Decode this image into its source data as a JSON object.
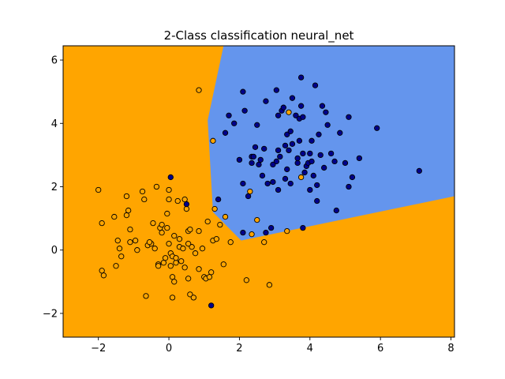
{
  "chart_data": {
    "type": "scatter",
    "title": "2-Class classification neural_net",
    "xlabel": "",
    "ylabel": "",
    "xlim": [
      -3.0,
      8.1
    ],
    "ylim": [
      -2.75,
      6.45
    ],
    "x_ticks": [
      -2,
      0,
      2,
      4,
      6,
      8
    ],
    "y_ticks": [
      -2,
      0,
      2,
      4,
      6
    ],
    "x_tick_labels": [
      "−2",
      "0",
      "2",
      "4",
      "6",
      "8"
    ],
    "y_tick_labels": [
      "−2",
      "0",
      "2",
      "4",
      "6"
    ],
    "grid": false,
    "legend": "none",
    "colors": {
      "region_class_0": "#ffa500",
      "region_class_1": "#6495ed",
      "class_0": "#ffa500",
      "class_1": "#00008b",
      "edge": "#000000"
    },
    "decision_regions": [
      {
        "class": 1,
        "polygon": [
          [
            1.55,
            6.45
          ],
          [
            8.1,
            6.45
          ],
          [
            8.1,
            1.7
          ],
          [
            2.05,
            0.3
          ],
          [
            1.25,
            1.2
          ],
          [
            1.1,
            4.1
          ]
        ]
      }
    ],
    "series": [
      {
        "class": 0,
        "points": [
          [
            -2.0,
            1.9
          ],
          [
            -1.9,
            0.85
          ],
          [
            -1.9,
            -0.65
          ],
          [
            -1.85,
            -0.8
          ],
          [
            -1.55,
            1.05
          ],
          [
            -1.45,
            0.3
          ],
          [
            -1.4,
            0.05
          ],
          [
            -1.35,
            -0.2
          ],
          [
            -1.5,
            -0.5
          ],
          [
            -1.2,
            1.7
          ],
          [
            -1.15,
            1.25
          ],
          [
            -1.2,
            1.1
          ],
          [
            -1.1,
            0.65
          ],
          [
            -1.1,
            0.25
          ],
          [
            -0.95,
            0.3
          ],
          [
            -0.9,
            0.0
          ],
          [
            -0.75,
            1.85
          ],
          [
            -0.7,
            1.6
          ],
          [
            -0.6,
            0.15
          ],
          [
            -0.5,
            0.2
          ],
          [
            -0.45,
            0.85
          ],
          [
            -0.4,
            0.05
          ],
          [
            -0.35,
            2.0
          ],
          [
            -0.3,
            -0.45
          ],
          [
            -0.25,
            0.7
          ],
          [
            -0.2,
            0.55
          ],
          [
            -0.2,
            0.8
          ],
          [
            -0.15,
            -0.4
          ],
          [
            -0.1,
            -0.25
          ],
          [
            -0.05,
            1.15
          ],
          [
            0.0,
            1.9
          ],
          [
            0.0,
            1.6
          ],
          [
            0.0,
            0.2
          ],
          [
            0.05,
            -0.1
          ],
          [
            0.05,
            -0.5
          ],
          [
            0.1,
            -0.2
          ],
          [
            0.1,
            -0.85
          ],
          [
            0.15,
            -1.0
          ],
          [
            0.2,
            -0.4
          ],
          [
            0.25,
            1.55
          ],
          [
            0.3,
            0.1
          ],
          [
            0.35,
            -0.35
          ],
          [
            0.4,
            0.05
          ],
          [
            0.45,
            1.6
          ],
          [
            0.5,
            1.3
          ],
          [
            0.55,
            0.6
          ],
          [
            0.6,
            0.65
          ],
          [
            0.65,
            0.1
          ],
          [
            0.6,
            -1.4
          ],
          [
            0.7,
            -1.5
          ],
          [
            -0.65,
            -1.45
          ],
          [
            0.1,
            -1.5
          ],
          [
            0.85,
            0.6
          ],
          [
            0.95,
            0.05
          ],
          [
            1.0,
            -0.85
          ],
          [
            1.05,
            -0.9
          ],
          [
            1.1,
            0.9
          ],
          [
            1.2,
            -0.7
          ],
          [
            1.25,
            0.3
          ],
          [
            1.3,
            1.3
          ],
          [
            1.35,
            0.35
          ],
          [
            1.45,
            0.8
          ],
          [
            1.6,
            1.05
          ],
          [
            1.75,
            0.25
          ],
          [
            0.85,
            5.05
          ],
          [
            1.25,
            3.45
          ],
          [
            2.3,
            1.85
          ],
          [
            2.35,
            0.5
          ],
          [
            2.5,
            0.95
          ],
          [
            2.7,
            0.25
          ],
          [
            2.85,
            -1.1
          ],
          [
            2.2,
            -0.95
          ],
          [
            3.35,
            0.6
          ],
          [
            3.75,
            2.3
          ],
          [
            3.4,
            4.35
          ],
          [
            0.55,
            -0.9
          ],
          [
            0.85,
            -0.6
          ],
          [
            1.15,
            -0.85
          ],
          [
            -0.55,
            0.25
          ],
          [
            0.15,
            0.45
          ],
          [
            0.3,
            0.35
          ],
          [
            -0.3,
            -0.5
          ],
          [
            0.75,
            -0.1
          ],
          [
            1.55,
            -0.45
          ],
          [
            0.2,
            -0.25
          ],
          [
            0.55,
            0.2
          ],
          [
            -0.05,
            0.7
          ],
          [
            0.45,
            -0.55
          ]
        ]
      },
      {
        "class": 1,
        "points": [
          [
            0.05,
            2.3
          ],
          [
            0.5,
            1.45
          ],
          [
            1.2,
            -1.75
          ],
          [
            1.4,
            1.6
          ],
          [
            1.6,
            3.7
          ],
          [
            1.7,
            4.25
          ],
          [
            1.85,
            4.0
          ],
          [
            2.0,
            2.85
          ],
          [
            2.1,
            5.0
          ],
          [
            2.1,
            2.1
          ],
          [
            2.1,
            0.55
          ],
          [
            2.15,
            4.4
          ],
          [
            2.25,
            1.7
          ],
          [
            2.35,
            2.95
          ],
          [
            2.35,
            2.75
          ],
          [
            2.4,
            2.95
          ],
          [
            2.45,
            3.25
          ],
          [
            2.5,
            3.95
          ],
          [
            2.55,
            2.7
          ],
          [
            2.6,
            2.85
          ],
          [
            2.7,
            3.2
          ],
          [
            2.75,
            4.7
          ],
          [
            2.8,
            2.1
          ],
          [
            2.75,
            0.55
          ],
          [
            2.9,
            0.7
          ],
          [
            2.95,
            2.15
          ],
          [
            3.05,
            5.05
          ],
          [
            3.1,
            1.9
          ],
          [
            3.1,
            3.15
          ],
          [
            3.15,
            2.95
          ],
          [
            3.2,
            4.4
          ],
          [
            3.25,
            4.5
          ],
          [
            3.3,
            3.3
          ],
          [
            3.35,
            2.55
          ],
          [
            3.35,
            3.65
          ],
          [
            3.4,
            3.15
          ],
          [
            3.45,
            2.1
          ],
          [
            3.5,
            4.8
          ],
          [
            3.5,
            3.35
          ],
          [
            3.6,
            4.25
          ],
          [
            3.65,
            2.75
          ],
          [
            3.65,
            2.9
          ],
          [
            3.7,
            4.15
          ],
          [
            3.75,
            5.45
          ],
          [
            3.75,
            4.55
          ],
          [
            3.8,
            4.2
          ],
          [
            3.8,
            3.05
          ],
          [
            3.85,
            2.45
          ],
          [
            3.9,
            2.65
          ],
          [
            3.95,
            2.75
          ],
          [
            4.0,
            1.9
          ],
          [
            4.05,
            3.45
          ],
          [
            4.1,
            2.35
          ],
          [
            4.15,
            5.2
          ],
          [
            4.2,
            2.05
          ],
          [
            4.25,
            3.65
          ],
          [
            4.3,
            3.0
          ],
          [
            4.35,
            4.55
          ],
          [
            4.4,
            2.6
          ],
          [
            4.45,
            4.35
          ],
          [
            4.5,
            3.95
          ],
          [
            4.6,
            3.05
          ],
          [
            4.7,
            2.8
          ],
          [
            4.75,
            1.25
          ],
          [
            4.85,
            3.7
          ],
          [
            5.0,
            2.75
          ],
          [
            5.1,
            4.2
          ],
          [
            5.1,
            2.0
          ],
          [
            5.2,
            2.3
          ],
          [
            5.4,
            2.9
          ],
          [
            5.9,
            3.85
          ],
          [
            7.1,
            2.5
          ],
          [
            3.8,
            0.7
          ],
          [
            4.2,
            1.55
          ],
          [
            3.45,
            3.75
          ],
          [
            3.05,
            2.8
          ],
          [
            2.95,
            2.7
          ],
          [
            3.3,
            2.25
          ],
          [
            4.05,
            2.8
          ],
          [
            2.65,
            2.35
          ],
          [
            3.7,
            3.45
          ],
          [
            4.0,
            3.05
          ],
          [
            3.1,
            4.25
          ]
        ]
      }
    ]
  }
}
